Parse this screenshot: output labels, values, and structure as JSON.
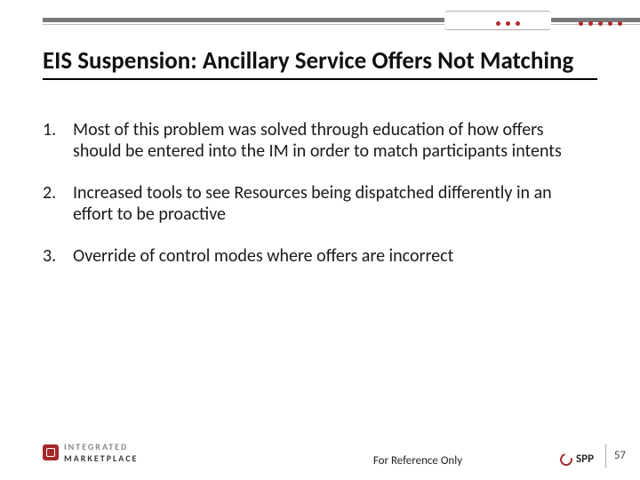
{
  "title": "EIS Suspension: Ancillary Service Offers Not Matching",
  "title_color": "#111111",
  "title_fontsize": 27,
  "title_underline_color": "#000000",
  "body_fontsize": 20,
  "body_color": "#1a1a1a",
  "items": [
    {
      "n": "1.",
      "text": "Most of this problem was solved through education of how offers should be entered into the IM in order to match participants intents"
    },
    {
      "n": "2.",
      "text": "Increased tools to see Resources being dispatched differently in an effort to be proactive"
    },
    {
      "n": "3.",
      "text": "Override of control modes where offers are incorrect"
    }
  ],
  "footer_ref": "For Reference Only",
  "page_number": "57",
  "logo_im": {
    "line1": "INTEGRATED",
    "line2": "MARKETPLACE",
    "mark_color": "#a42a2a"
  },
  "logo_spp": {
    "text": "SPP",
    "swirl_color": "#a42a2a"
  },
  "topband": {
    "thick_color": "#7a7a7a",
    "thin_color": "#bcbcbc",
    "pin_color": "#b02a2a",
    "pins_left_count": 3,
    "pins_right_count": 5
  },
  "background_color": "#ffffff"
}
